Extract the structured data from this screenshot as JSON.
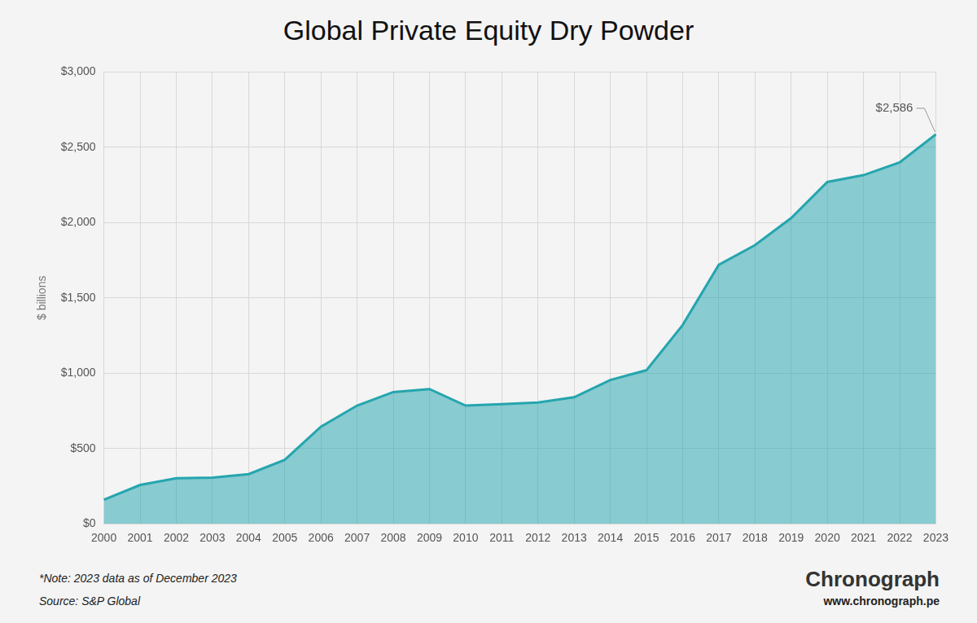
{
  "chart_data": {
    "type": "area",
    "title": "Global Private Equity Dry Powder",
    "y_label": "$ billions",
    "categories": [
      "2000",
      "2001",
      "2002",
      "2003",
      "2004",
      "2005",
      "2006",
      "2007",
      "2008",
      "2009",
      "2010",
      "2011",
      "2012",
      "2013",
      "2014",
      "2015",
      "2016",
      "2017",
      "2018",
      "2019",
      "2020",
      "2021",
      "2022",
      "2023"
    ],
    "values": [
      160,
      258,
      302,
      306,
      330,
      425,
      645,
      785,
      875,
      895,
      785,
      795,
      805,
      840,
      955,
      1020,
      1320,
      1720,
      1850,
      2030,
      2270,
      2315,
      2400,
      2586
    ],
    "color": "#25a5ae",
    "ylim": [
      0,
      3000
    ],
    "yticks": [
      {
        "value": 0,
        "label": "$0"
      },
      {
        "value": 500,
        "label": "$500"
      },
      {
        "value": 1000,
        "label": "$1,000"
      },
      {
        "value": 1500,
        "label": "$1,500"
      },
      {
        "value": 2000,
        "label": "$2,000"
      },
      {
        "value": 2500,
        "label": "$2,500"
      },
      {
        "value": 3000,
        "label": "$3,000"
      }
    ],
    "grid": true,
    "annotations": [
      {
        "text": "$2,586",
        "x": "2023",
        "y": 2586
      }
    ],
    "note": "*Note: 2023 data as of December 2023",
    "source": "Source: S&P Global",
    "logo": "Chronograph",
    "url": "www.chronograph.pe"
  }
}
